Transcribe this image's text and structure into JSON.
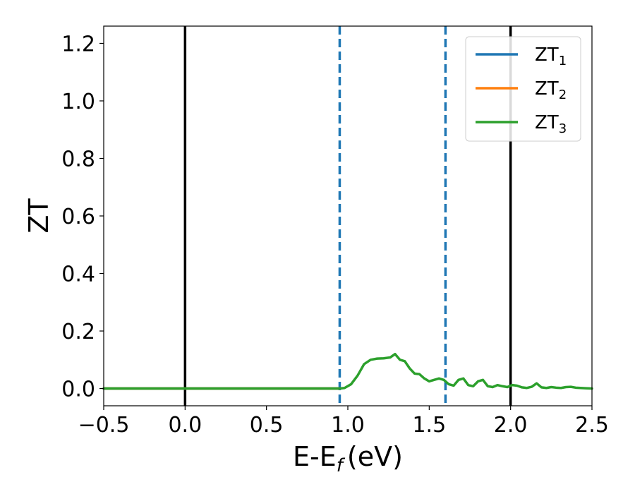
{
  "chart_data": {
    "type": "line",
    "title": "",
    "xlabel": {
      "main": "E-E",
      "sub": "f",
      "unit": "(eV)"
    },
    "ylabel": "ZT",
    "xlim": [
      -0.5,
      2.5
    ],
    "ylim": [
      -0.06,
      1.26
    ],
    "xticks": [
      -0.5,
      0.0,
      0.5,
      1.0,
      1.5,
      2.0,
      2.5
    ],
    "xtick_labels": [
      "−0.5",
      "0.0",
      "0.5",
      "1.0",
      "1.5",
      "2.0",
      "2.5"
    ],
    "yticks": [
      0.0,
      0.2,
      0.4,
      0.6,
      0.8,
      1.0,
      1.2
    ],
    "ytick_labels": [
      "0.0",
      "0.2",
      "0.4",
      "0.6",
      "0.8",
      "1.0",
      "1.2"
    ],
    "grid": false,
    "legend_position": "top-right",
    "series": [
      {
        "name": "ZT",
        "sub": "1",
        "color": "#1f77b4",
        "x": [
          -0.5,
          0.95
        ],
        "y": [
          0.0,
          0.0
        ]
      },
      {
        "name": "ZT",
        "sub": "2",
        "color": "#ff7f0e",
        "x": [
          -0.5,
          0.95
        ],
        "y": [
          0.0,
          0.0
        ]
      },
      {
        "name": "ZT",
        "sub": "3",
        "color": "#2ca02c",
        "x": [
          -0.5,
          0.0,
          0.5,
          0.9,
          0.95,
          0.98,
          1.02,
          1.06,
          1.1,
          1.14,
          1.18,
          1.22,
          1.26,
          1.29,
          1.32,
          1.35,
          1.38,
          1.41,
          1.44,
          1.47,
          1.5,
          1.53,
          1.56,
          1.59,
          1.62,
          1.65,
          1.68,
          1.71,
          1.74,
          1.77,
          1.8,
          1.83,
          1.86,
          1.89,
          1.92,
          1.95,
          1.98,
          2.01,
          2.04,
          2.07,
          2.1,
          2.13,
          2.16,
          2.19,
          2.22,
          2.25,
          2.28,
          2.31,
          2.34,
          2.37,
          2.4,
          2.43,
          2.46,
          2.5
        ],
        "y": [
          0.0,
          0.0,
          0.0,
          0.0,
          0.0,
          0.002,
          0.015,
          0.045,
          0.085,
          0.1,
          0.104,
          0.105,
          0.108,
          0.12,
          0.1,
          0.095,
          0.07,
          0.052,
          0.05,
          0.035,
          0.025,
          0.03,
          0.035,
          0.03,
          0.015,
          0.01,
          0.03,
          0.035,
          0.012,
          0.008,
          0.025,
          0.03,
          0.008,
          0.005,
          0.012,
          0.008,
          0.005,
          0.012,
          0.01,
          0.004,
          0.002,
          0.006,
          0.018,
          0.004,
          0.002,
          0.005,
          0.003,
          0.002,
          0.005,
          0.006,
          0.003,
          0.002,
          0.001,
          0.0
        ]
      }
    ],
    "vlines": [
      {
        "x": 0.0,
        "style": "solid",
        "color": "#000000"
      },
      {
        "x": 0.95,
        "style": "dashed",
        "color": "#1f77b4"
      },
      {
        "x": 1.6,
        "style": "dashed",
        "color": "#1f77b4"
      },
      {
        "x": 2.0,
        "style": "solid",
        "color": "#000000"
      }
    ]
  }
}
